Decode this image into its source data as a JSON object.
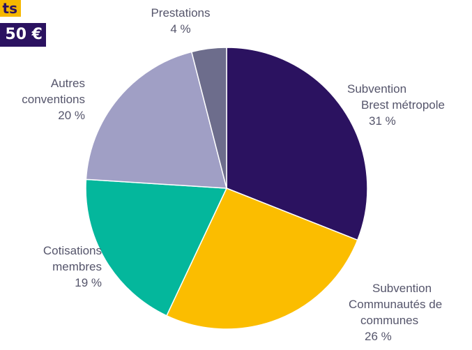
{
  "header": {
    "tag_top": "ts",
    "tag_amount": "50 €"
  },
  "chart_data": {
    "type": "pie",
    "start_angle_deg": 0,
    "direction": "clockwise",
    "slices": [
      {
        "label_lines": [
          "Subvention",
          "Brest métropole"
        ],
        "value": 31,
        "value_label": "31 %",
        "color": "#2b1260"
      },
      {
        "label_lines": [
          "Subvention",
          "Communautés de",
          "communes"
        ],
        "value": 26,
        "value_label": "26 %",
        "color": "#fbbd00"
      },
      {
        "label_lines": [
          "Cotisations",
          "membres"
        ],
        "value": 19,
        "value_label": "19 %",
        "color": "#04b79c"
      },
      {
        "label_lines": [
          "Autres",
          "conventions"
        ],
        "value": 20,
        "value_label": "20 %",
        "color": "#a09fc5"
      },
      {
        "label_lines": [
          "Prestations"
        ],
        "value": 4,
        "value_label": "4 %",
        "color": "#6d6d8c"
      }
    ]
  }
}
